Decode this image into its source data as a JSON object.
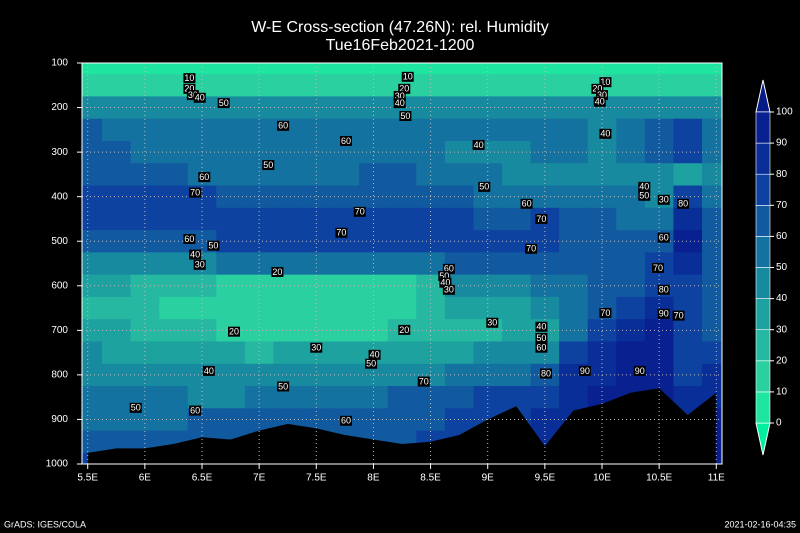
{
  "chart_data": {
    "type": "contour",
    "title": "W-E Cross-section (47.26N): rel. Humidity",
    "subtitle": "Tue16Feb2021-1200",
    "footer_left": "GrADS: IGES/COLA",
    "footer_right": "2021-02-16-04:35",
    "xlim": [
      5.45,
      11.05
    ],
    "xticks": [
      {
        "value": 5.5,
        "label": "5.5E"
      },
      {
        "value": 6,
        "label": "6E"
      },
      {
        "value": 6.5,
        "label": "6.5E"
      },
      {
        "value": 7,
        "label": "7E"
      },
      {
        "value": 7.5,
        "label": "7.5E"
      },
      {
        "value": 8,
        "label": "8E"
      },
      {
        "value": 8.5,
        "label": "8.5E"
      },
      {
        "value": 9,
        "label": "9E"
      },
      {
        "value": 9.5,
        "label": "9.5E"
      },
      {
        "value": 10,
        "label": "10E"
      },
      {
        "value": 10.5,
        "label": "10.5E"
      },
      {
        "value": 11,
        "label": "11E"
      }
    ],
    "ylim": [
      1000,
      100
    ],
    "yticks": [
      100,
      200,
      300,
      400,
      500,
      600,
      700,
      800,
      900,
      1000
    ],
    "grid": true,
    "levels": [
      0,
      10,
      20,
      30,
      40,
      50,
      60,
      70,
      80,
      90,
      100
    ],
    "colors": [
      "#00f0a0",
      "#1ee6a0",
      "#2ad0a0",
      "#26b8a0",
      "#1ea2a0",
      "#188aa0",
      "#1472a0",
      "#125aa0",
      "#0e42a0",
      "#0a2e98",
      "#082090",
      "#061a88"
    ],
    "field": {
      "x": [
        5.5,
        5.75,
        6,
        6.25,
        6.5,
        6.75,
        7,
        7.25,
        7.5,
        7.75,
        8,
        8.25,
        8.5,
        8.75,
        9,
        9.25,
        9.5,
        9.75,
        10,
        10.25,
        10.5,
        10.75,
        11
      ],
      "y": [
        100,
        150,
        200,
        250,
        300,
        350,
        400,
        450,
        500,
        550,
        600,
        650,
        700,
        750,
        800,
        850,
        900,
        950,
        1000
      ],
      "values": [
        [
          5,
          5,
          5,
          5,
          5,
          5,
          5,
          5,
          5,
          5,
          5,
          5,
          5,
          5,
          5,
          5,
          5,
          5,
          5,
          5,
          5,
          5,
          5
        ],
        [
          15,
          15,
          15,
          15,
          15,
          15,
          15,
          15,
          15,
          15,
          15,
          15,
          15,
          15,
          15,
          15,
          15,
          15,
          15,
          15,
          15,
          15,
          15
        ],
        [
          42,
          42,
          42,
          42,
          42,
          42,
          42,
          42,
          42,
          42,
          42,
          42,
          42,
          42,
          42,
          42,
          42,
          42,
          42,
          42,
          45,
          45,
          45
        ],
        [
          62,
          58,
          55,
          55,
          55,
          55,
          55,
          55,
          55,
          55,
          55,
          55,
          55,
          55,
          55,
          55,
          55,
          50,
          48,
          55,
          65,
          72,
          55
        ],
        [
          60,
          60,
          58,
          55,
          55,
          52,
          50,
          52,
          55,
          58,
          58,
          55,
          52,
          48,
          45,
          48,
          50,
          50,
          48,
          50,
          60,
          70,
          55
        ],
        [
          65,
          65,
          65,
          62,
          58,
          55,
          52,
          52,
          55,
          58,
          60,
          60,
          58,
          55,
          50,
          48,
          48,
          48,
          48,
          45,
          42,
          35,
          45
        ],
        [
          72,
          72,
          72,
          72,
          70,
          68,
          65,
          62,
          62,
          65,
          68,
          68,
          65,
          62,
          58,
          55,
          58,
          55,
          52,
          50,
          42,
          75,
          55
        ],
        [
          75,
          75,
          75,
          75,
          75,
          75,
          72,
          72,
          72,
          72,
          75,
          75,
          72,
          70,
          68,
          68,
          70,
          65,
          60,
          55,
          52,
          85,
          60
        ],
        [
          68,
          66,
          65,
          65,
          68,
          70,
          72,
          72,
          72,
          72,
          72,
          72,
          72,
          72,
          72,
          72,
          70,
          68,
          62,
          60,
          65,
          92,
          60
        ],
        [
          48,
          45,
          42,
          45,
          48,
          52,
          55,
          55,
          55,
          55,
          55,
          55,
          58,
          62,
          62,
          62,
          62,
          65,
          65,
          65,
          70,
          85,
          62
        ],
        [
          35,
          32,
          28,
          25,
          22,
          18,
          15,
          15,
          15,
          15,
          16,
          18,
          28,
          40,
          45,
          48,
          50,
          55,
          62,
          68,
          75,
          78,
          62
        ],
        [
          28,
          26,
          22,
          18,
          15,
          12,
          10,
          10,
          10,
          10,
          12,
          15,
          22,
          30,
          35,
          38,
          40,
          50,
          62,
          72,
          82,
          72,
          65
        ],
        [
          30,
          30,
          26,
          22,
          20,
          18,
          18,
          18,
          18,
          18,
          18,
          20,
          22,
          25,
          28,
          32,
          36,
          55,
          70,
          85,
          92,
          70,
          68
        ],
        [
          40,
          38,
          35,
          32,
          30,
          30,
          28,
          32,
          32,
          32,
          32,
          32,
          35,
          38,
          40,
          42,
          45,
          70,
          82,
          90,
          95,
          75,
          78
        ],
        [
          48,
          46,
          45,
          42,
          40,
          40,
          40,
          42,
          42,
          42,
          44,
          45,
          48,
          52,
          55,
          58,
          62,
          80,
          88,
          92,
          95,
          78,
          85
        ],
        [
          52,
          50,
          50,
          50,
          48,
          48,
          50,
          52,
          55,
          55,
          58,
          60,
          65,
          68,
          70,
          72,
          75,
          85,
          90,
          95,
          95,
          80,
          88
        ],
        [
          58,
          58,
          58,
          58,
          60,
          62,
          62,
          62,
          62,
          62,
          62,
          65,
          68,
          72,
          75,
          78,
          80,
          88,
          92,
          95,
          95,
          85,
          90
        ],
        [
          65,
          65,
          62,
          62,
          62,
          62,
          62,
          62,
          62,
          62,
          62,
          65,
          70,
          72,
          75,
          78,
          80,
          88,
          92,
          95,
          95,
          85,
          90
        ],
        [
          70,
          70,
          68,
          68,
          68,
          68,
          68,
          68,
          68,
          68,
          68,
          70,
          72,
          75,
          78,
          80,
          82,
          88,
          92,
          95,
          95,
          88,
          90
        ]
      ]
    },
    "terrain_pressure": [
      975,
      965,
      965,
      955,
      940,
      945,
      925,
      910,
      920,
      935,
      945,
      955,
      950,
      935,
      900,
      870,
      960,
      880,
      865,
      840,
      830,
      890,
      840
    ],
    "contour_labels": [
      {
        "x": 6.39,
        "y": 134,
        "value": 10
      },
      {
        "x": 6.39,
        "y": 158,
        "value": 20
      },
      {
        "x": 6.42,
        "y": 172,
        "value": 30
      },
      {
        "x": 6.48,
        "y": 178,
        "value": 40
      },
      {
        "x": 6.69,
        "y": 190,
        "value": 50
      },
      {
        "x": 7.21,
        "y": 241,
        "value": 60
      },
      {
        "x": 7.76,
        "y": 275,
        "value": 60
      },
      {
        "x": 7.08,
        "y": 329,
        "value": 50
      },
      {
        "x": 6.52,
        "y": 356,
        "value": 60
      },
      {
        "x": 6.44,
        "y": 391,
        "value": 70
      },
      {
        "x": 7.88,
        "y": 434,
        "value": 70
      },
      {
        "x": 7.72,
        "y": 481,
        "value": 70
      },
      {
        "x": 6.39,
        "y": 495,
        "value": 60
      },
      {
        "x": 6.6,
        "y": 510,
        "value": 50
      },
      {
        "x": 6.44,
        "y": 530,
        "value": 40
      },
      {
        "x": 6.48,
        "y": 553,
        "value": 30
      },
      {
        "x": 7.16,
        "y": 569,
        "value": 20
      },
      {
        "x": 8.3,
        "y": 131,
        "value": 10
      },
      {
        "x": 8.27,
        "y": 158,
        "value": 20
      },
      {
        "x": 8.23,
        "y": 174,
        "value": 30
      },
      {
        "x": 8.23,
        "y": 190,
        "value": 40
      },
      {
        "x": 8.28,
        "y": 219,
        "value": 50
      },
      {
        "x": 8.92,
        "y": 284,
        "value": 40
      },
      {
        "x": 8.97,
        "y": 378,
        "value": 50
      },
      {
        "x": 9.34,
        "y": 416,
        "value": 60
      },
      {
        "x": 9.47,
        "y": 450,
        "value": 70
      },
      {
        "x": 9.38,
        "y": 517,
        "value": 70
      },
      {
        "x": 8.66,
        "y": 562,
        "value": 60
      },
      {
        "x": 8.62,
        "y": 578,
        "value": 50
      },
      {
        "x": 8.63,
        "y": 593,
        "value": 40
      },
      {
        "x": 8.66,
        "y": 609,
        "value": 30
      },
      {
        "x": 10.03,
        "y": 143,
        "value": 10
      },
      {
        "x": 9.96,
        "y": 158,
        "value": 20
      },
      {
        "x": 10.0,
        "y": 172,
        "value": 30
      },
      {
        "x": 9.98,
        "y": 187,
        "value": 40
      },
      {
        "x": 10.03,
        "y": 259,
        "value": 40
      },
      {
        "x": 10.37,
        "y": 378,
        "value": 40
      },
      {
        "x": 10.37,
        "y": 398,
        "value": 50
      },
      {
        "x": 10.54,
        "y": 407,
        "value": 30
      },
      {
        "x": 10.71,
        "y": 416,
        "value": 80
      },
      {
        "x": 10.54,
        "y": 492,
        "value": 60
      },
      {
        "x": 10.49,
        "y": 560,
        "value": 70
      },
      {
        "x": 10.54,
        "y": 609,
        "value": 80
      },
      {
        "x": 10.54,
        "y": 663,
        "value": 90
      },
      {
        "x": 10.67,
        "y": 667,
        "value": 70
      },
      {
        "x": 10.03,
        "y": 661,
        "value": 70
      },
      {
        "x": 10.33,
        "y": 791,
        "value": 90
      },
      {
        "x": 9.85,
        "y": 791,
        "value": 90
      },
      {
        "x": 9.51,
        "y": 797,
        "value": 80
      },
      {
        "x": 9.47,
        "y": 692,
        "value": 40
      },
      {
        "x": 9.47,
        "y": 717,
        "value": 50
      },
      {
        "x": 9.47,
        "y": 739,
        "value": 60
      },
      {
        "x": 9.04,
        "y": 683,
        "value": 30
      },
      {
        "x": 8.27,
        "y": 699,
        "value": 20
      },
      {
        "x": 6.78,
        "y": 703,
        "value": 20
      },
      {
        "x": 7.5,
        "y": 739,
        "value": 30
      },
      {
        "x": 8.01,
        "y": 755,
        "value": 40
      },
      {
        "x": 7.98,
        "y": 775,
        "value": 50
      },
      {
        "x": 8.44,
        "y": 815,
        "value": 70
      },
      {
        "x": 7.21,
        "y": 826,
        "value": 50
      },
      {
        "x": 6.56,
        "y": 791,
        "value": 40
      },
      {
        "x": 5.92,
        "y": 874,
        "value": 50
      },
      {
        "x": 6.44,
        "y": 880,
        "value": 60
      },
      {
        "x": 7.76,
        "y": 903,
        "value": 60
      }
    ]
  }
}
